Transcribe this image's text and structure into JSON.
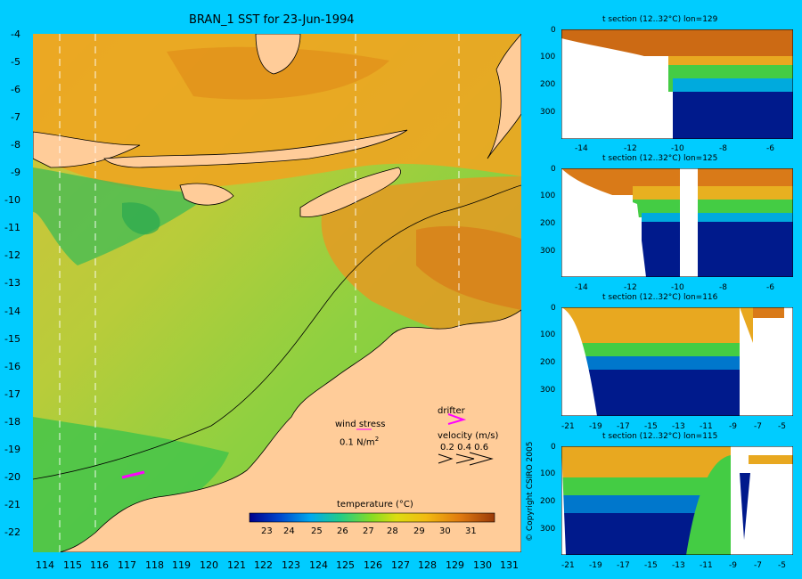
{
  "main_map": {
    "title": "BRAN_1 SST for 23-Jun-1994",
    "lon_ticks": [
      "114",
      "115",
      "116",
      "117",
      "118",
      "119",
      "120",
      "121",
      "122",
      "123",
      "124",
      "125",
      "126",
      "127",
      "128",
      "129",
      "130",
      "131"
    ],
    "lat_ticks": [
      "-4",
      "-5",
      "-6",
      "-7",
      "-8",
      "-9",
      "-10",
      "-11",
      "-12",
      "-13",
      "-14",
      "-15",
      "-16",
      "-17",
      "-18",
      "-19",
      "-20",
      "-21",
      "-22"
    ],
    "legend": {
      "wind_stress_label": "wind stress",
      "wind_stress_scale": "0.1 N/m",
      "wind_stress_sup": "2",
      "drifter_label": "drifter",
      "velocity_label": "velocity (m/s)",
      "velocity_scale": "0.2 0.4 0.6"
    },
    "colorbar": {
      "label": "temperature (°C)",
      "ticks": [
        "23",
        "24",
        "25",
        "26",
        "27",
        "28",
        "29",
        "30",
        "31"
      ]
    }
  },
  "sections": [
    {
      "title": "t section (12..32°C) lon=129",
      "y_ticks": [
        "0",
        "100",
        "200",
        "300"
      ],
      "x_ticks": [
        "-14",
        "-12",
        "-10",
        "-8",
        "-6"
      ]
    },
    {
      "title": "t section (12..32°C) lon=125",
      "y_ticks": [
        "0",
        "100",
        "200",
        "300"
      ],
      "x_ticks": [
        "-14",
        "-12",
        "-10",
        "-8",
        "-6"
      ]
    },
    {
      "title": "t section (12..32°C) lon=116",
      "y_ticks": [
        "0",
        "100",
        "200",
        "300"
      ],
      "x_ticks": [
        "-21",
        "-19",
        "-17",
        "-15",
        "-13",
        "-11",
        "-9",
        "-7",
        "-5"
      ]
    },
    {
      "title": "t section (12..32°C) lon=115",
      "y_ticks": [
        "0",
        "100",
        "200",
        "300"
      ],
      "x_ticks": [
        "-21",
        "-19",
        "-17",
        "-15",
        "-13",
        "-11",
        "-9",
        "-7",
        "-5"
      ]
    }
  ],
  "copyright": "© Copyright CSIRO 2005",
  "colors": {
    "background": "#00ccff",
    "land": "#ffcc99",
    "deep": "#001a8c",
    "warm": "#e07a10",
    "cool": "#33bb55"
  },
  "chart_data": {
    "type": "heatmap",
    "title": "BRAN_1 SST for 23-Jun-1994",
    "xlim": [
      113.5,
      131.5
    ],
    "ylim": [
      -22.5,
      -4
    ],
    "colorbar_range": [
      22.5,
      32
    ],
    "section_longitudes": [
      129,
      125,
      116,
      115
    ]
  }
}
